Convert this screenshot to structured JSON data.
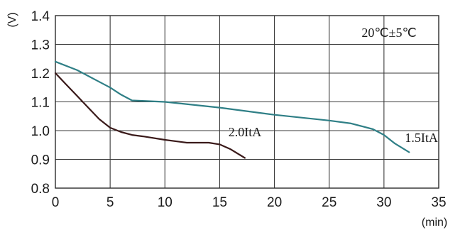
{
  "chart_data": {
    "type": "line",
    "xlabel": "(min)",
    "ylabel": "(V)",
    "xlim": [
      0,
      35
    ],
    "ylim": [
      0.8,
      1.4
    ],
    "xticks": [
      0,
      5,
      10,
      15,
      20,
      25,
      30,
      35
    ],
    "yticks": [
      0.8,
      0.9,
      1.0,
      1.1,
      1.2,
      1.3,
      1.4
    ],
    "grid": true,
    "annotation": "20℃±5℃",
    "series": [
      {
        "name": "1.5IₜA",
        "label_text": "1.5ItA",
        "color": "#2f7f86",
        "x": [
          0,
          2,
          4,
          5,
          6,
          7,
          10,
          15,
          20,
          25,
          27,
          29,
          30,
          31,
          32.3
        ],
        "y": [
          1.24,
          1.21,
          1.17,
          1.15,
          1.125,
          1.105,
          1.1,
          1.08,
          1.055,
          1.035,
          1.025,
          1.005,
          0.985,
          0.955,
          0.925
        ]
      },
      {
        "name": "2.0IₜA",
        "label_text": "2.0ItA",
        "color": "#3a1a1a",
        "x": [
          0,
          1,
          2,
          3,
          4,
          5,
          6,
          7,
          8,
          10,
          12,
          13,
          14,
          15,
          16,
          17.3
        ],
        "y": [
          1.2,
          1.16,
          1.12,
          1.08,
          1.04,
          1.01,
          0.995,
          0.985,
          0.98,
          0.968,
          0.958,
          0.958,
          0.958,
          0.952,
          0.935,
          0.905
        ]
      }
    ]
  }
}
